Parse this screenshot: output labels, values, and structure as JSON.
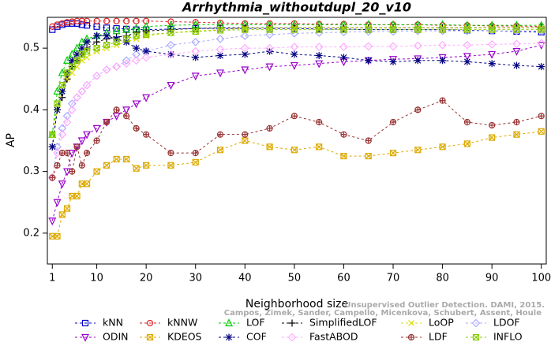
{
  "chart_data": {
    "type": "line",
    "title": "Arrhythmia_withoutdupl_20_v10",
    "x_label": "Neighborhood size",
    "y_label": "AP",
    "annotations": [
      "Unsupervised Outlier Detection. DAMI, 2015.",
      "Campos, Zimek, Sander, Campello, Micenkova, Schubert, Assent, Houle"
    ],
    "xlim": [
      0,
      101
    ],
    "ylim": [
      0.15,
      0.55
    ],
    "xticks": [
      1,
      10,
      20,
      30,
      40,
      50,
      60,
      70,
      80,
      90,
      100
    ],
    "yticks": [
      0.2,
      0.3,
      0.4,
      0.5
    ],
    "x": [
      1,
      2,
      3,
      4,
      5,
      6,
      7,
      8,
      10,
      12,
      14,
      16,
      18,
      20,
      25,
      30,
      35,
      40,
      45,
      50,
      55,
      60,
      65,
      70,
      75,
      80,
      85,
      90,
      95,
      100
    ],
    "series": [
      {
        "name": "kNN",
        "color": "#0000cc",
        "marker": "square",
        "values": [
          0.53,
          0.535,
          0.538,
          0.54,
          0.54,
          0.54,
          0.538,
          0.537,
          0.535,
          0.533,
          0.532,
          0.531,
          0.53,
          0.53,
          0.531,
          0.532,
          0.532,
          0.532,
          0.532,
          0.532,
          0.531,
          0.531,
          0.53,
          0.53,
          0.53,
          0.53,
          0.529,
          0.528,
          0.527,
          0.526
        ]
      },
      {
        "name": "kNNW",
        "color": "#dd2222",
        "marker": "circle",
        "values": [
          0.535,
          0.538,
          0.54,
          0.542,
          0.543,
          0.544,
          0.544,
          0.544,
          0.544,
          0.544,
          0.544,
          0.544,
          0.544,
          0.544,
          0.543,
          0.542,
          0.541,
          0.54,
          0.54,
          0.54,
          0.539,
          0.539,
          0.538,
          0.538,
          0.538,
          0.537,
          0.537,
          0.536,
          0.536,
          0.535
        ]
      },
      {
        "name": "LOF",
        "color": "#00cc00",
        "marker": "triangle",
        "values": [
          0.36,
          0.43,
          0.46,
          0.48,
          0.49,
          0.5,
          0.51,
          0.515,
          0.52,
          0.525,
          0.528,
          0.53,
          0.532,
          0.535,
          0.537,
          0.538,
          0.538,
          0.538,
          0.538,
          0.538,
          0.538,
          0.538,
          0.538,
          0.538,
          0.538,
          0.538,
          0.537,
          0.537,
          0.537,
          0.537
        ]
      },
      {
        "name": "SimplifiedLOF",
        "color": "#000000",
        "marker": "plus",
        "values": [
          0.34,
          0.4,
          0.42,
          0.45,
          0.47,
          0.48,
          0.49,
          0.5,
          0.51,
          0.515,
          0.518,
          0.52,
          0.525,
          0.528,
          0.53,
          0.532,
          0.533,
          0.533,
          0.533,
          0.533,
          0.533,
          0.533,
          0.533,
          0.533,
          0.533,
          0.533,
          0.533,
          0.533,
          0.533,
          0.533
        ]
      },
      {
        "name": "LoOP",
        "color": "#dddd00",
        "marker": "x",
        "values": [
          0.36,
          0.4,
          0.43,
          0.45,
          0.46,
          0.47,
          0.48,
          0.485,
          0.495,
          0.5,
          0.505,
          0.51,
          0.515,
          0.52,
          0.525,
          0.528,
          0.53,
          0.532,
          0.533,
          0.533,
          0.533,
          0.533,
          0.533,
          0.533,
          0.533,
          0.533,
          0.533,
          0.533,
          0.533,
          0.533
        ]
      },
      {
        "name": "LDOF",
        "color": "#aaaaff",
        "marker": "diamond",
        "values": [
          0.29,
          0.34,
          0.37,
          0.39,
          0.41,
          0.42,
          0.43,
          0.44,
          0.455,
          0.465,
          0.47,
          0.48,
          0.49,
          0.495,
          0.505,
          0.51,
          0.515,
          0.52,
          0.522,
          0.524,
          0.525,
          0.526,
          0.527,
          0.527,
          0.528,
          0.528,
          0.528,
          0.528,
          0.528,
          0.528
        ]
      },
      {
        "name": "ODIN",
        "color": "#9900cc",
        "marker": "tridown",
        "values": [
          0.22,
          0.25,
          0.28,
          0.3,
          0.33,
          0.34,
          0.35,
          0.36,
          0.37,
          0.38,
          0.39,
          0.4,
          0.41,
          0.42,
          0.44,
          0.455,
          0.46,
          0.465,
          0.47,
          0.472,
          0.475,
          0.478,
          0.48,
          0.482,
          0.483,
          0.485,
          0.487,
          0.49,
          0.495,
          0.505
        ]
      },
      {
        "name": "KDEOS",
        "color": "#ddaa00",
        "marker": "squarex",
        "values": [
          0.195,
          0.195,
          0.23,
          0.24,
          0.26,
          0.26,
          0.28,
          0.28,
          0.3,
          0.31,
          0.32,
          0.32,
          0.305,
          0.31,
          0.31,
          0.315,
          0.335,
          0.35,
          0.34,
          0.335,
          0.34,
          0.325,
          0.325,
          0.33,
          0.335,
          0.34,
          0.345,
          0.355,
          0.36,
          0.365
        ]
      },
      {
        "name": "COF",
        "color": "#000080",
        "marker": "star",
        "values": [
          0.34,
          0.4,
          0.43,
          0.46,
          0.48,
          0.49,
          0.5,
          0.51,
          0.52,
          0.52,
          0.515,
          0.51,
          0.5,
          0.495,
          0.49,
          0.485,
          0.488,
          0.49,
          0.495,
          0.49,
          0.488,
          0.485,
          0.48,
          0.478,
          0.48,
          0.48,
          0.478,
          0.475,
          0.472,
          0.47
        ]
      },
      {
        "name": "FastABOD",
        "color": "#ffaaff",
        "marker": "diamond",
        "values": [
          0.29,
          0.33,
          0.36,
          0.38,
          0.4,
          0.42,
          0.43,
          0.44,
          0.455,
          0.465,
          0.47,
          0.475,
          0.48,
          0.485,
          0.49,
          0.495,
          0.498,
          0.5,
          0.5,
          0.502,
          0.502,
          0.502,
          0.503,
          0.503,
          0.504,
          0.505,
          0.505,
          0.506,
          0.507,
          0.508
        ]
      },
      {
        "name": "LDF",
        "color": "#993333",
        "marker": "circleplus",
        "values": [
          0.29,
          0.31,
          0.33,
          0.33,
          0.3,
          0.34,
          0.31,
          0.33,
          0.35,
          0.38,
          0.4,
          0.39,
          0.37,
          0.36,
          0.33,
          0.33,
          0.36,
          0.36,
          0.37,
          0.39,
          0.38,
          0.36,
          0.35,
          0.38,
          0.4,
          0.415,
          0.38,
          0.375,
          0.38,
          0.39
        ]
      },
      {
        "name": "INFLO",
        "color": "#88cc00",
        "marker": "squarex",
        "values": [
          0.36,
          0.41,
          0.44,
          0.46,
          0.47,
          0.48,
          0.49,
          0.495,
          0.5,
          0.505,
          0.51,
          0.515,
          0.52,
          0.522,
          0.525,
          0.527,
          0.529,
          0.53,
          0.53,
          0.53,
          0.53,
          0.53,
          0.53,
          0.53,
          0.53,
          0.53,
          0.53,
          0.53,
          0.53,
          0.53
        ]
      }
    ]
  }
}
